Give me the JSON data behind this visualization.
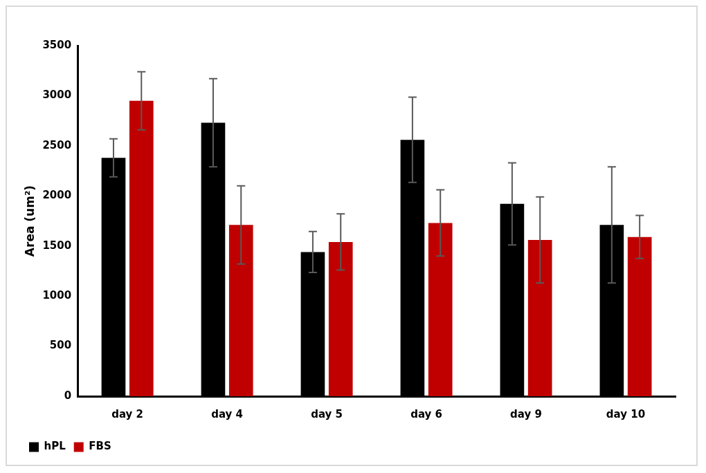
{
  "chart_data": {
    "type": "bar",
    "ylabel": "Area (um²)",
    "categories": [
      "day 2",
      "day 4",
      "day 5",
      "day 6",
      "day 9",
      "day 10"
    ],
    "series": [
      {
        "name": "hPL",
        "color": "#000000",
        "values": [
          2380,
          2730,
          1440,
          2560,
          1920,
          1710
        ],
        "errors": [
          190,
          440,
          205,
          425,
          410,
          580
        ]
      },
      {
        "name": "FBS",
        "color": "#c00000",
        "values": [
          2950,
          1710,
          1540,
          1730,
          1560,
          1590
        ],
        "errors": [
          290,
          390,
          280,
          330,
          430,
          215
        ]
      }
    ],
    "ylim": [
      0,
      3500
    ],
    "yticks": [
      0,
      500,
      1000,
      1500,
      2000,
      2500,
      3000,
      3500
    ],
    "grid": false,
    "legend": "bottom left"
  }
}
